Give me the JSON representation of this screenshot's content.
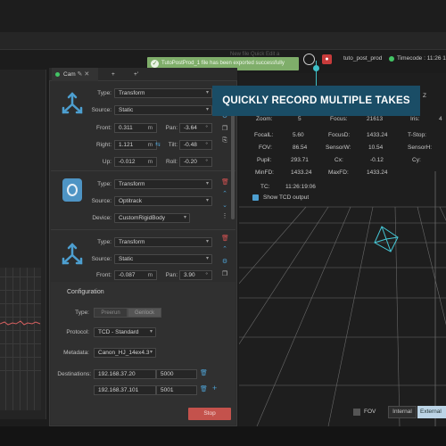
{
  "toast": {
    "message": "TutoPostProd_1 file has been exported successfully"
  },
  "header": {
    "blurred_text": "New file Quick Edit a",
    "project_name": "tuto_post_prod",
    "timecode_label": "Timecode : 11:26 1",
    "colors": {
      "timecode_dot": "#43c465",
      "record": "#c83b3b"
    }
  },
  "banner": {
    "text": "QUICKLY RECORD MULTIPLE TAKES",
    "color": "#1a4d66"
  },
  "tabs": [
    {
      "label": "Cam",
      "icon": "pencil-icon"
    },
    {
      "label": "+"
    },
    {
      "label": "+'"
    }
  ],
  "tracker1": {
    "type_label": "Type:",
    "type_value": "Transform",
    "source_label": "Source:",
    "source_value": "Static",
    "front_label": "Front:",
    "front_value": "0.311",
    "front_unit": "m",
    "right_label": "Right:",
    "right_value": "1.121",
    "right_unit": "m",
    "up_label": "Up:",
    "up_value": "-0.012",
    "up_unit": "m",
    "pan_label": "Pan:",
    "pan_value": "-3.64",
    "pan_unit": "°",
    "tilt_label": "Tilt:",
    "tilt_value": "-0.48",
    "tilt_unit": "°",
    "roll_label": "Roll:",
    "roll_value": "-0.20",
    "roll_unit": "°"
  },
  "tracker2": {
    "type_label": "Type:",
    "type_value": "Transform",
    "source_label": "Source:",
    "source_value": "Optitrack",
    "device_label": "Device:",
    "device_value": "CustomRigidBody"
  },
  "tracker3": {
    "type_label": "Type:",
    "type_value": "Transform",
    "source_label": "Source:",
    "source_value": "Static",
    "front_label": "Front:",
    "front_value": "-0.087",
    "front_unit": "m",
    "pan_label": "Pan:",
    "pan_value": "3.90",
    "pan_unit": "°"
  },
  "configuration": {
    "title": "Configuration",
    "type_label": "Type:",
    "type_options": [
      "Preerun",
      "Genlock"
    ],
    "protocol_label": "Protocol:",
    "protocol_value": "TCD - Standard",
    "metadata_label": "Metadata:",
    "metadata_value": "Canon_HJ_14ex4.3",
    "destinations_label": "Destinations:",
    "destinations": [
      {
        "ip": "192.168.37.20",
        "port": "5000"
      },
      {
        "ip": "192.168.37.101",
        "port": "5001"
      }
    ],
    "stop_label": "Stop"
  },
  "viewport": {
    "info": {
      "zoom_label": "Zoom:",
      "zoom_value": "5",
      "focus_label": "Focus:",
      "focus_value": "21613",
      "iris_label": "Iris:",
      "iris_value": "4",
      "focal_label": "FocalL:",
      "focal_value": "5.60",
      "focusd_label": "FocusD:",
      "focusd_value": "1433.24",
      "tstop_label": "T-Stop:",
      "fov_label": "FOV:",
      "fov_value": "86.54",
      "sensorw_label": "SensorW:",
      "sensorw_value": "10.54",
      "sensorh_label": "SensorH:",
      "pupil_label": "Pupil:",
      "pupil_value": "293.71",
      "cx_label": "Cx:",
      "cx_value": "-0.12",
      "cy_label": "Cy:",
      "minfd_label": "MinFD:",
      "minfd_value": "1433.24",
      "maxfd_label": "MaxFD:",
      "maxfd_value": "1433.24",
      "tc_label": "TC:",
      "tc_value": "11:26:19:06"
    },
    "show_tcd_label": "Show TCD output",
    "axis_z": "Z",
    "fov_toggle_label": "FOV",
    "internal_label": "Internal",
    "external_label": "External"
  }
}
